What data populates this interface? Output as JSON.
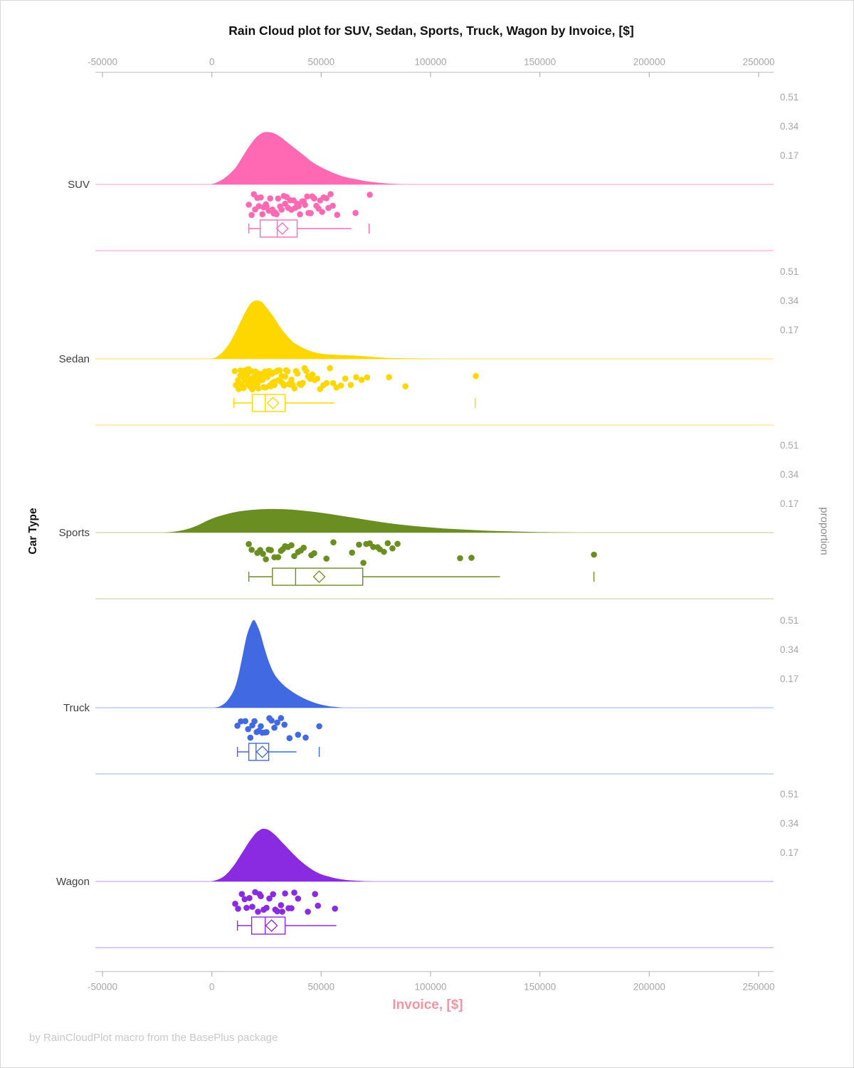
{
  "title": "Rain Cloud plot for SUV, Sedan, Sports, Truck, Wagon by Invoice, [$]",
  "footer": "by RainCloudPlot macro from the BasePlus package",
  "x_axis": {
    "label": "Invoice, [$]",
    "ticks": [
      {
        "label": "-50000",
        "value": -50000
      },
      {
        "label": "0",
        "value": 0
      },
      {
        "label": "50000",
        "value": 50000
      },
      {
        "label": "100000",
        "value": 100000
      },
      {
        "label": "150000",
        "value": 150000
      },
      {
        "label": "200000",
        "value": 200000
      },
      {
        "label": "250000",
        "value": 250000
      }
    ]
  },
  "y_axis": {
    "label": "Car Type"
  },
  "right_axis": {
    "label": "proportion",
    "ticks": [
      {
        "label": "0.51",
        "value": 0.51
      },
      {
        "label": "0.34",
        "value": 0.34
      },
      {
        "label": "0.17",
        "value": 0.17
      }
    ]
  },
  "colors": {
    "axis_line": "#c8c8c8",
    "tick_mark": "#b4b4b4",
    "tick_label": "#a6a6a6",
    "category_label": "#3f3f3f",
    "title_text": "#111111",
    "x_label_text": "#f194a4",
    "footer_text": "#c8c8c8"
  },
  "chart_data": {
    "type": "raincloud",
    "title": "Rain Cloud plot for SUV, Sedan, Sports, Truck, Wagon by Invoice, [$]",
    "xlabel": "Invoice, [$]",
    "ylabel": "Car Type",
    "right_label": "proportion",
    "xlim": [
      -50000,
      250000
    ],
    "proportion_ticks": [
      0.51,
      0.34,
      0.17
    ],
    "categories": [
      "SUV",
      "Sedan",
      "Sports",
      "Truck",
      "Wagon"
    ],
    "series": [
      {
        "name": "SUV",
        "color": "#FF69B4",
        "tint": "#f9aed5",
        "box": {
          "whisker_low": 16900,
          "q1": 22100,
          "median": 29900,
          "mean": 32200,
          "q3": 39000,
          "whisker_high": 63800,
          "far_outlier": 71900
        },
        "density": [
          [
            -500,
            0
          ],
          [
            2000,
            0.01
          ],
          [
            5000,
            0.03
          ],
          [
            8000,
            0.06
          ],
          [
            11000,
            0.1
          ],
          [
            14000,
            0.16
          ],
          [
            17000,
            0.22
          ],
          [
            20000,
            0.27
          ],
          [
            23000,
            0.3
          ],
          [
            25000,
            0.305
          ],
          [
            28000,
            0.3
          ],
          [
            31000,
            0.28
          ],
          [
            34000,
            0.25
          ],
          [
            38000,
            0.21
          ],
          [
            42000,
            0.17
          ],
          [
            46000,
            0.13
          ],
          [
            50000,
            0.1
          ],
          [
            54000,
            0.075
          ],
          [
            58000,
            0.055
          ],
          [
            62000,
            0.04
          ],
          [
            66000,
            0.03
          ],
          [
            70000,
            0.02
          ],
          [
            74000,
            0.013
          ],
          [
            78000,
            0.008
          ],
          [
            82000,
            0.004
          ],
          [
            86000,
            0.001
          ],
          [
            88000,
            0
          ]
        ],
        "points": [
          16900,
          18200,
          19200,
          19800,
          20800,
          21500,
          22400,
          23100,
          23700,
          24700,
          25000,
          26000,
          26700,
          27700,
          28300,
          29000,
          29600,
          30300,
          31200,
          31900,
          32900,
          33500,
          34200,
          34800,
          35800,
          36400,
          37400,
          38100,
          39000,
          39700,
          40300,
          41300,
          42000,
          42600,
          43600,
          44200,
          45200,
          45900,
          46800,
          47800,
          48800,
          49500,
          50400,
          51100,
          52400,
          53300,
          54300,
          55300,
          57300,
          65700,
          72200
        ]
      },
      {
        "name": "Sedan",
        "color": "#FFD700",
        "tint": "#ffe680",
        "box": {
          "whisker_low": 10100,
          "q1": 18500,
          "median": 24400,
          "mean": 28000,
          "q3": 33500,
          "whisker_high": 56000,
          "far_outlier": 120400
        },
        "density": [
          [
            -500,
            0
          ],
          [
            2000,
            0.01
          ],
          [
            5000,
            0.04
          ],
          [
            8000,
            0.09
          ],
          [
            11000,
            0.16
          ],
          [
            14000,
            0.24
          ],
          [
            17000,
            0.31
          ],
          [
            19000,
            0.335
          ],
          [
            21000,
            0.34
          ],
          [
            23000,
            0.33
          ],
          [
            25000,
            0.3
          ],
          [
            28000,
            0.25
          ],
          [
            31000,
            0.19
          ],
          [
            34000,
            0.14
          ],
          [
            37000,
            0.1
          ],
          [
            40000,
            0.075
          ],
          [
            44000,
            0.05
          ],
          [
            48000,
            0.035
          ],
          [
            52000,
            0.027
          ],
          [
            56000,
            0.024
          ],
          [
            60000,
            0.022
          ],
          [
            64000,
            0.02
          ],
          [
            68000,
            0.017
          ],
          [
            72000,
            0.013
          ],
          [
            76000,
            0.009
          ],
          [
            80000,
            0.006
          ],
          [
            85000,
            0.004
          ],
          [
            90000,
            0.003
          ],
          [
            95000,
            0.002
          ],
          [
            100000,
            0.001
          ],
          [
            105000,
            0
          ]
        ],
        "points": [
          10500,
          11000,
          11500,
          12000,
          12300,
          12600,
          13000,
          13200,
          13500,
          13800,
          14000,
          14200,
          14500,
          14800,
          15000,
          15200,
          15500,
          15800,
          16000,
          16200,
          16500,
          16800,
          17000,
          17300,
          17600,
          18000,
          18200,
          18500,
          18800,
          19000,
          19300,
          19600,
          20000,
          20200,
          20500,
          20800,
          21000,
          21300,
          21700,
          22000,
          22300,
          22600,
          23000,
          23300,
          23700,
          24000,
          24300,
          24700,
          25000,
          25400,
          25800,
          26200,
          26600,
          27000,
          27400,
          27800,
          28200,
          28600,
          29000,
          29500,
          30000,
          30500,
          31000,
          31500,
          32000,
          32500,
          33000,
          33500,
          34000,
          34600,
          35200,
          35800,
          36400,
          37000,
          37800,
          38500,
          39200,
          40000,
          40800,
          41600,
          42400,
          43200,
          44000,
          45000,
          46000,
          47000,
          48200,
          49500,
          51000,
          52500,
          54000,
          55500,
          57000,
          59000,
          61000,
          63500,
          66000,
          68500,
          71000,
          81000,
          88500,
          120700
        ]
      },
      {
        "name": "Sports",
        "color": "#6B8E23",
        "tint": "#c8d6a6",
        "box": {
          "whisker_low": 16900,
          "q1": 27700,
          "median": 38300,
          "mean": 49100,
          "q3": 69000,
          "whisker_high": 131700,
          "far_outlier": 174700
        },
        "density": [
          [
            -22000,
            0
          ],
          [
            -18000,
            0.004
          ],
          [
            -14000,
            0.012
          ],
          [
            -10000,
            0.025
          ],
          [
            -6000,
            0.045
          ],
          [
            -2000,
            0.07
          ],
          [
            2000,
            0.09
          ],
          [
            6000,
            0.105
          ],
          [
            10000,
            0.118
          ],
          [
            15000,
            0.128
          ],
          [
            20000,
            0.134
          ],
          [
            25000,
            0.137
          ],
          [
            30000,
            0.137
          ],
          [
            35000,
            0.135
          ],
          [
            40000,
            0.13
          ],
          [
            46000,
            0.122
          ],
          [
            52000,
            0.112
          ],
          [
            58000,
            0.1
          ],
          [
            64000,
            0.088
          ],
          [
            70000,
            0.076
          ],
          [
            76000,
            0.064
          ],
          [
            82000,
            0.053
          ],
          [
            88000,
            0.044
          ],
          [
            94000,
            0.036
          ],
          [
            100000,
            0.03
          ],
          [
            106000,
            0.024
          ],
          [
            112000,
            0.02
          ],
          [
            118000,
            0.016
          ],
          [
            124000,
            0.012
          ],
          [
            130000,
            0.009
          ],
          [
            136000,
            0.007
          ],
          [
            142000,
            0.005
          ],
          [
            148000,
            0.003
          ],
          [
            154000,
            0.002
          ],
          [
            160000,
            0.001
          ],
          [
            166000,
            0
          ]
        ],
        "points": [
          16900,
          18200,
          20800,
          22100,
          23400,
          24700,
          26000,
          27000,
          28600,
          30300,
          31600,
          32500,
          33500,
          34800,
          36400,
          37700,
          39400,
          40700,
          42000,
          45500,
          46800,
          52400,
          55600,
          64100,
          67300,
          69300,
          70600,
          72200,
          73800,
          75800,
          76800,
          78700,
          80400,
          82600,
          84900,
          113500,
          118700,
          174700
        ]
      },
      {
        "name": "Truck",
        "color": "#4169E1",
        "tint": "#aec2f0",
        "box": {
          "whisker_low": 11700,
          "q1": 16900,
          "median": 20200,
          "mean": 23100,
          "q3": 26000,
          "whisker_high": 38700,
          "far_outlier": 49100
        },
        "density": [
          [
            1000,
            0
          ],
          [
            4000,
            0.01
          ],
          [
            7000,
            0.04
          ],
          [
            10000,
            0.1
          ],
          [
            12000,
            0.18
          ],
          [
            14000,
            0.3
          ],
          [
            16000,
            0.42
          ],
          [
            18000,
            0.49
          ],
          [
            19000,
            0.51
          ],
          [
            20000,
            0.5
          ],
          [
            22000,
            0.44
          ],
          [
            24000,
            0.35
          ],
          [
            26000,
            0.27
          ],
          [
            28000,
            0.21
          ],
          [
            30000,
            0.17
          ],
          [
            33000,
            0.13
          ],
          [
            36000,
            0.1
          ],
          [
            39000,
            0.075
          ],
          [
            42000,
            0.055
          ],
          [
            45000,
            0.038
          ],
          [
            48000,
            0.025
          ],
          [
            51000,
            0.015
          ],
          [
            54000,
            0.008
          ],
          [
            57000,
            0.004
          ],
          [
            60000,
            0
          ]
        ],
        "points": [
          11700,
          13300,
          15300,
          16600,
          17600,
          18500,
          19500,
          20500,
          21500,
          22400,
          23100,
          24400,
          25000,
          26300,
          27300,
          28600,
          29900,
          31600,
          33200,
          35500,
          39400,
          42900,
          49100
        ]
      },
      {
        "name": "Wagon",
        "color": "#8A2BE2",
        "tint": "#cca7ef",
        "box": {
          "whisker_low": 11700,
          "q1": 18200,
          "median": 24400,
          "mean": 27300,
          "q3": 33500,
          "whisker_high": 56900,
          "far_outlier": null
        },
        "density": [
          [
            -500,
            0
          ],
          [
            2000,
            0.008
          ],
          [
            5000,
            0.025
          ],
          [
            8000,
            0.06
          ],
          [
            11000,
            0.11
          ],
          [
            14000,
            0.17
          ],
          [
            17000,
            0.23
          ],
          [
            20000,
            0.28
          ],
          [
            22000,
            0.3
          ],
          [
            23500,
            0.307
          ],
          [
            26000,
            0.3
          ],
          [
            29000,
            0.27
          ],
          [
            32000,
            0.23
          ],
          [
            35000,
            0.19
          ],
          [
            38000,
            0.15
          ],
          [
            41000,
            0.115
          ],
          [
            44000,
            0.085
          ],
          [
            47000,
            0.06
          ],
          [
            50000,
            0.042
          ],
          [
            53000,
            0.03
          ],
          [
            56000,
            0.02
          ],
          [
            59000,
            0.013
          ],
          [
            62000,
            0.008
          ],
          [
            65000,
            0.005
          ],
          [
            68000,
            0.003
          ],
          [
            71000,
            0.001
          ],
          [
            73000,
            0
          ]
        ],
        "points": [
          10700,
          12000,
          13700,
          15000,
          15900,
          17200,
          18500,
          19800,
          21100,
          21800,
          22400,
          23700,
          25000,
          26300,
          28000,
          29000,
          29900,
          31600,
          32200,
          33500,
          35100,
          36400,
          37700,
          39400,
          43900,
          47200,
          48500,
          56300
        ]
      }
    ]
  }
}
